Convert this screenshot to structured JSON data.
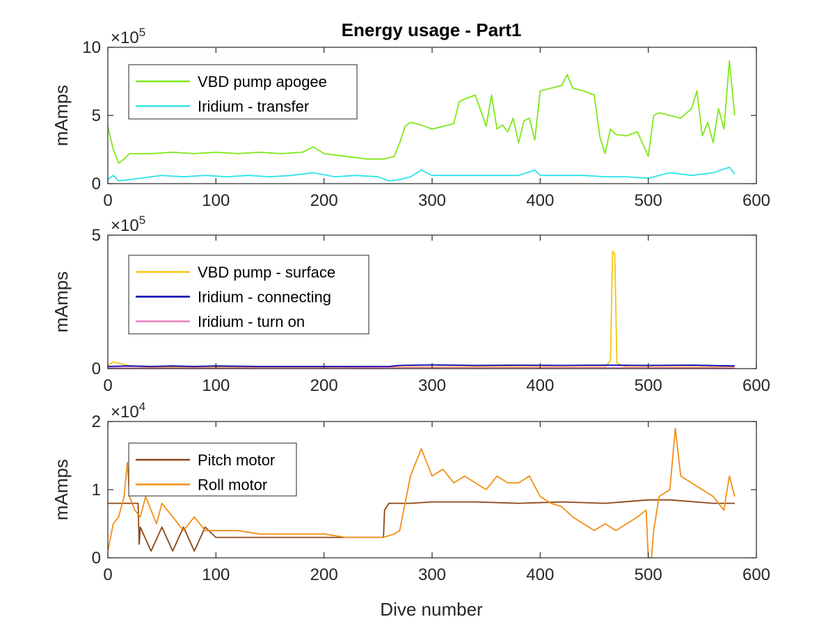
{
  "chart_data": [
    {
      "type": "line",
      "title": "Energy usage - Part1",
      "xlabel": "",
      "ylabel": "mAmps",
      "multiplier": {
        "base": "×10",
        "exp": "5"
      },
      "xlim": [
        0,
        600
      ],
      "ylim": [
        0,
        10
      ],
      "xticks": [
        "0",
        "100",
        "200",
        "300",
        "400",
        "500",
        "600"
      ],
      "yticks": [
        "0",
        "5",
        "10"
      ],
      "legend_position": "top-left",
      "series": [
        {
          "name": "VBD pump apogee",
          "color": "#7ee817",
          "x": [
            0,
            2,
            5,
            10,
            15,
            20,
            40,
            60,
            80,
            100,
            120,
            140,
            160,
            180,
            190,
            200,
            220,
            240,
            255,
            265,
            270,
            275,
            280,
            290,
            300,
            310,
            320,
            325,
            330,
            340,
            350,
            355,
            360,
            365,
            370,
            375,
            380,
            385,
            390,
            395,
            400,
            410,
            420,
            425,
            430,
            440,
            450,
            455,
            460,
            465,
            470,
            480,
            490,
            500,
            505,
            510,
            520,
            530,
            540,
            545,
            550,
            555,
            560,
            565,
            570,
            575,
            580
          ],
          "y": [
            4.2,
            3.5,
            2.5,
            1.5,
            1.8,
            2.2,
            2.2,
            2.3,
            2.2,
            2.3,
            2.2,
            2.3,
            2.2,
            2.3,
            2.7,
            2.2,
            2.0,
            1.8,
            1.8,
            2.0,
            3.0,
            4.2,
            4.5,
            4.3,
            4.0,
            4.2,
            4.4,
            6.0,
            6.2,
            6.5,
            4.2,
            6.5,
            4.0,
            4.3,
            3.8,
            4.8,
            3.0,
            4.6,
            4.8,
            3.2,
            6.8,
            7.0,
            7.2,
            8.0,
            7.0,
            6.8,
            6.5,
            3.5,
            2.2,
            4.0,
            3.6,
            3.5,
            3.8,
            2.0,
            5.0,
            5.2,
            5.0,
            4.8,
            5.5,
            6.8,
            3.5,
            4.5,
            3.0,
            5.5,
            4.0,
            9.0,
            5.0
          ]
        },
        {
          "name": "Iridium - transfer",
          "color": "#2de3e8",
          "x": [
            0,
            5,
            10,
            20,
            30,
            50,
            70,
            90,
            110,
            130,
            150,
            170,
            190,
            210,
            230,
            250,
            260,
            270,
            280,
            290,
            300,
            320,
            340,
            360,
            380,
            395,
            400,
            420,
            440,
            460,
            480,
            500,
            520,
            540,
            560,
            575,
            580
          ],
          "y": [
            0.3,
            0.6,
            0.2,
            0.3,
            0.4,
            0.6,
            0.5,
            0.6,
            0.5,
            0.6,
            0.5,
            0.6,
            0.8,
            0.5,
            0.6,
            0.5,
            0.2,
            0.3,
            0.5,
            1.0,
            0.6,
            0.6,
            0.6,
            0.6,
            0.6,
            1.0,
            0.6,
            0.6,
            0.6,
            0.5,
            0.5,
            0.4,
            0.8,
            0.6,
            0.8,
            1.2,
            0.7
          ]
        }
      ]
    },
    {
      "type": "line",
      "title": "",
      "xlabel": "",
      "ylabel": "mAmps",
      "multiplier": {
        "base": "×10",
        "exp": "5"
      },
      "xlim": [
        0,
        600
      ],
      "ylim": [
        0,
        5
      ],
      "xticks": [
        "0",
        "100",
        "200",
        "300",
        "400",
        "500",
        "600"
      ],
      "yticks": [
        "0",
        "5"
      ],
      "legend_position": "top-left",
      "series": [
        {
          "name": "VBD pump - surface",
          "color": "#f2c514",
          "x": [
            0,
            5,
            10,
            20,
            40,
            80,
            120,
            160,
            200,
            240,
            260,
            300,
            340,
            380,
            420,
            460,
            465,
            467,
            469,
            471,
            480,
            520,
            560,
            580
          ],
          "y": [
            0.12,
            0.25,
            0.2,
            0.1,
            0.06,
            0.05,
            0.05,
            0.05,
            0.05,
            0.05,
            0.06,
            0.06,
            0.07,
            0.07,
            0.06,
            0.06,
            0.3,
            4.4,
            4.3,
            0.2,
            0.06,
            0.06,
            0.06,
            0.05
          ]
        },
        {
          "name": "Iridium - connecting",
          "color": "#0000b4",
          "x": [
            0,
            20,
            40,
            60,
            80,
            100,
            140,
            180,
            220,
            260,
            270,
            300,
            340,
            380,
            420,
            460,
            500,
            540,
            580
          ],
          "y": [
            0.08,
            0.1,
            0.08,
            0.1,
            0.08,
            0.1,
            0.08,
            0.08,
            0.08,
            0.08,
            0.12,
            0.14,
            0.12,
            0.13,
            0.12,
            0.13,
            0.12,
            0.13,
            0.1
          ]
        },
        {
          "name": "Iridium - turn on",
          "color": "#e87cbc",
          "x": [
            0,
            100,
            200,
            260,
            300,
            400,
            500,
            580
          ],
          "y": [
            0.02,
            0.02,
            0.02,
            0.04,
            0.04,
            0.04,
            0.04,
            0.03
          ]
        }
      ]
    },
    {
      "type": "line",
      "title": "",
      "xlabel": "Dive number",
      "ylabel": "mAmps",
      "multiplier": {
        "base": "×10",
        "exp": "4"
      },
      "xlim": [
        0,
        600
      ],
      "ylim": [
        0,
        2
      ],
      "xticks": [
        "0",
        "100",
        "200",
        "300",
        "400",
        "500",
        "600"
      ],
      "yticks": [
        "0",
        "1",
        "2"
      ],
      "legend_position": "top-left",
      "series": [
        {
          "name": "Pitch motor",
          "color": "#8b4513",
          "x": [
            0,
            28,
            29,
            30,
            40,
            50,
            60,
            70,
            80,
            90,
            100,
            120,
            140,
            160,
            180,
            200,
            220,
            240,
            255,
            256,
            260,
            280,
            300,
            340,
            380,
            420,
            460,
            500,
            520,
            560,
            580
          ],
          "y": [
            0.8,
            0.8,
            0.2,
            0.45,
            0.1,
            0.45,
            0.1,
            0.45,
            0.1,
            0.45,
            0.3,
            0.3,
            0.3,
            0.3,
            0.3,
            0.3,
            0.3,
            0.3,
            0.3,
            0.7,
            0.8,
            0.8,
            0.82,
            0.82,
            0.8,
            0.82,
            0.8,
            0.85,
            0.85,
            0.8,
            0.8
          ]
        },
        {
          "name": "Roll motor",
          "color": "#f28e16",
          "x": [
            0,
            5,
            10,
            15,
            18,
            20,
            25,
            30,
            35,
            40,
            45,
            50,
            60,
            70,
            80,
            90,
            100,
            120,
            140,
            160,
            180,
            200,
            220,
            240,
            255,
            265,
            270,
            275,
            280,
            290,
            300,
            310,
            320,
            330,
            340,
            350,
            360,
            370,
            380,
            390,
            400,
            410,
            420,
            430,
            440,
            450,
            460,
            470,
            480,
            490,
            498,
            500,
            503,
            505,
            510,
            520,
            525,
            530,
            540,
            550,
            560,
            570,
            575,
            580
          ],
          "y": [
            0.1,
            0.5,
            0.6,
            0.9,
            1.4,
            0.9,
            0.7,
            0.6,
            0.9,
            0.7,
            0.5,
            0.8,
            0.6,
            0.4,
            0.6,
            0.4,
            0.4,
            0.4,
            0.35,
            0.35,
            0.35,
            0.35,
            0.3,
            0.3,
            0.3,
            0.35,
            0.4,
            0.8,
            1.2,
            1.6,
            1.2,
            1.3,
            1.1,
            1.2,
            1.1,
            1.0,
            1.2,
            1.1,
            1.1,
            1.2,
            0.9,
            0.8,
            0.75,
            0.6,
            0.5,
            0.4,
            0.5,
            0.4,
            0.5,
            0.6,
            0.7,
            0.0,
            0.0,
            0.4,
            0.9,
            1.0,
            1.9,
            1.2,
            1.1,
            1.0,
            0.9,
            0.7,
            1.2,
            0.9
          ]
        }
      ]
    }
  ]
}
